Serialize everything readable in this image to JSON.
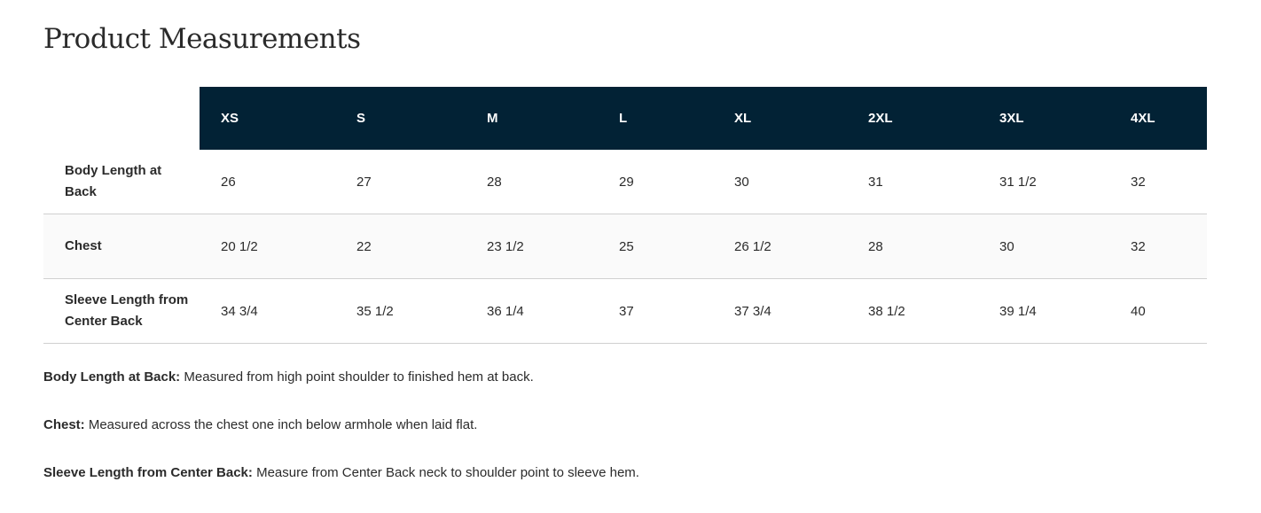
{
  "title": "Product Measurements",
  "table": {
    "headers": [
      "XS",
      "S",
      "M",
      "L",
      "XL",
      "2XL",
      "3XL",
      "4XL"
    ],
    "rows": [
      {
        "label": "Body Length at Back",
        "values": [
          "26",
          "27",
          "28",
          "29",
          "30",
          "31",
          "31 1/2",
          "32"
        ]
      },
      {
        "label": "Chest",
        "values": [
          "20 1/2",
          "22",
          "23 1/2",
          "25",
          "26 1/2",
          "28",
          "30",
          "32"
        ]
      },
      {
        "label": "Sleeve Length from Center Back",
        "values": [
          "34 3/4",
          "35 1/2",
          "36 1/4",
          "37",
          "37 3/4",
          "38 1/2",
          "39 1/4",
          "40"
        ]
      }
    ]
  },
  "notes": [
    {
      "term": "Body Length at Back:",
      "text": " Measured from high point shoulder to finished hem at back."
    },
    {
      "term": "Chest:",
      "text": " Measured across the chest one inch below armhole when laid flat."
    },
    {
      "term": "Sleeve Length from Center Back:",
      "text": " Measure from Center Back neck to shoulder point to sleeve hem."
    }
  ],
  "colors": {
    "header_bg": "#022235",
    "alt_row_bg": "#fafafa"
  }
}
